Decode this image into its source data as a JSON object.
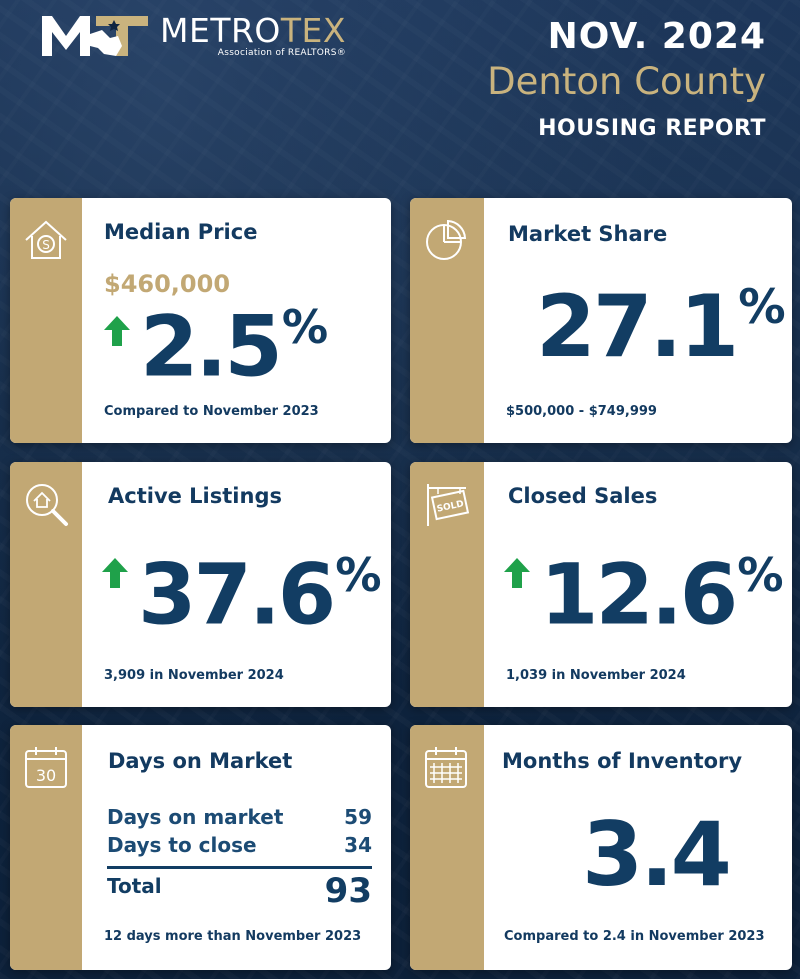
{
  "header": {
    "logo_main": "METRO",
    "logo_accent": "TEX",
    "logo_sub": "Association of REALTORS®",
    "date": "NOV. 2024",
    "county": "Denton County",
    "report": "HOUSING REPORT"
  },
  "cards": {
    "median": {
      "title": "Median Price",
      "price": "$460,000",
      "value": "2.5",
      "unit": "%",
      "trend": "up",
      "note": "Compared to November 2023",
      "icon": "house-dollar-icon"
    },
    "share": {
      "title": "Market Share",
      "value": "27.1",
      "unit": "%",
      "note": "$500,000 - $749,999",
      "icon": "pie-chart-icon"
    },
    "listings": {
      "title": "Active Listings",
      "value": "37.6",
      "unit": "%",
      "trend": "up",
      "note": "3,909 in November 2024",
      "icon": "search-house-icon"
    },
    "closed": {
      "title": "Closed Sales",
      "value": "12.6",
      "unit": "%",
      "trend": "up",
      "note": "1,039 in November 2024",
      "icon": "sold-sign-icon"
    },
    "dom": {
      "title": "Days on Market",
      "row1_label": "Days on market",
      "row1_value": "59",
      "row2_label": "Days to close",
      "row2_value": "34",
      "total_label": "Total",
      "total_value": "93",
      "note": "12 days more than November 2023",
      "icon_text": "30",
      "icon": "calendar-30-icon"
    },
    "inventory": {
      "title": "Months of Inventory",
      "value": "3.4",
      "note": "Compared to 2.4 in November 2023",
      "icon": "calendar-grid-icon"
    }
  },
  "colors": {
    "navy": "#123d63",
    "gold": "#c2a874",
    "green": "#1fa14a",
    "background": "#0f2540"
  }
}
